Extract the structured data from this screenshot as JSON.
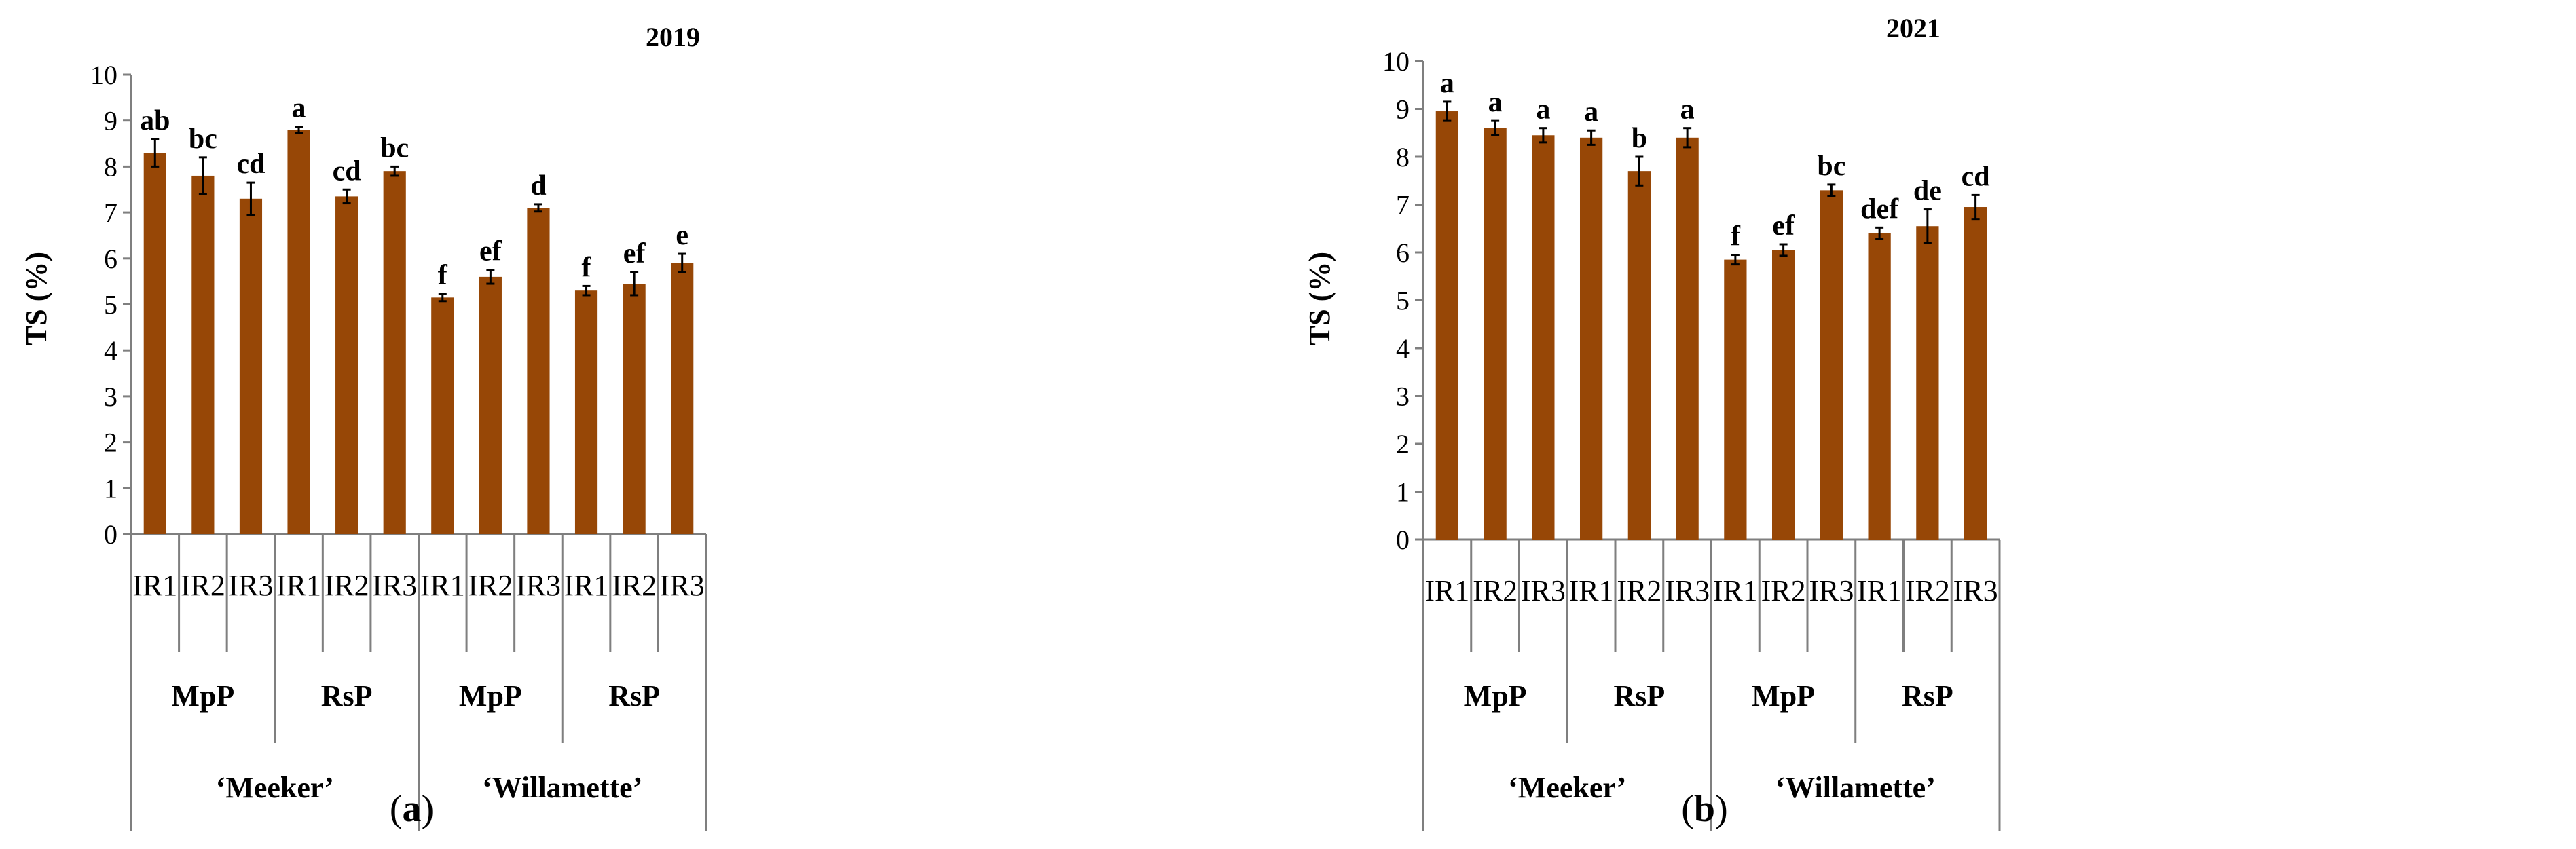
{
  "colors": {
    "bar": "#974706",
    "axis": "#7f7f7f",
    "text": "#000000",
    "error": "#000000"
  },
  "chart_data": [
    {
      "type": "bar",
      "title": "2019",
      "ylabel": "TS (%)",
      "xlabel": "",
      "ylim": [
        0,
        10
      ],
      "yticks": [
        "0",
        "1",
        "2",
        "3",
        "4",
        "5",
        "6",
        "7",
        "8",
        "9",
        "10"
      ],
      "grid": false,
      "categories": [
        "IR1",
        "IR2",
        "IR3",
        "IR1",
        "IR2",
        "IR3",
        "IR1",
        "IR2",
        "IR3",
        "IR1",
        "IR2",
        "IR3"
      ],
      "groups": [
        "MpP",
        "RsP",
        "MpP",
        "RsP"
      ],
      "cultivars": [
        "‘Meeker’",
        "‘Willamette’"
      ],
      "values": [
        8.3,
        7.8,
        7.3,
        8.8,
        7.35,
        7.9,
        5.15,
        5.6,
        7.1,
        5.3,
        5.45,
        5.9
      ],
      "errors": [
        0.3,
        0.4,
        0.35,
        0.07,
        0.15,
        0.1,
        0.08,
        0.15,
        0.08,
        0.1,
        0.25,
        0.2
      ],
      "letters": [
        "ab",
        "bc",
        "cd",
        "a",
        "cd",
        "bc",
        "f",
        "ef",
        "d",
        "f",
        "ef",
        "e"
      ],
      "panel_label": "(a)"
    },
    {
      "type": "bar",
      "title": "2021",
      "ylabel": "TS (%)",
      "xlabel": "",
      "ylim": [
        0,
        10
      ],
      "yticks": [
        "0",
        "1",
        "2",
        "3",
        "4",
        "5",
        "6",
        "7",
        "8",
        "9",
        "10"
      ],
      "grid": false,
      "categories": [
        "IR1",
        "IR2",
        "IR3",
        "IR1",
        "IR2",
        "IR3",
        "IR1",
        "IR2",
        "IR3",
        "IR1",
        "IR2",
        "IR3"
      ],
      "groups": [
        "MpP",
        "RsP",
        "MpP",
        "RsP"
      ],
      "cultivars": [
        "‘Meeker’",
        "‘Willamette’"
      ],
      "values": [
        8.95,
        8.6,
        8.45,
        8.4,
        7.7,
        8.4,
        5.85,
        6.05,
        7.3,
        6.4,
        6.55,
        6.95
      ],
      "errors": [
        0.2,
        0.15,
        0.15,
        0.15,
        0.3,
        0.2,
        0.1,
        0.12,
        0.12,
        0.12,
        0.35,
        0.25
      ],
      "letters": [
        "a",
        "a",
        "a",
        "a",
        "b",
        "a",
        "f",
        "ef",
        "bc",
        "def",
        "de",
        "cd"
      ],
      "panel_label": "(b)"
    }
  ]
}
